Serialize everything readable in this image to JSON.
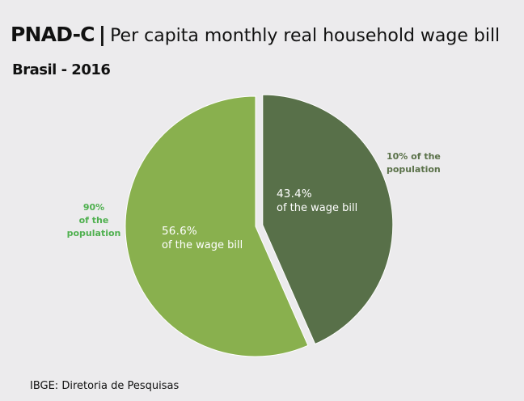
{
  "header": {
    "title_bold": "PNAD-C",
    "title_sep": "|",
    "title_rest": "Per capita monthly real household wage bill",
    "subtitle": "Brasil - 2016"
  },
  "chart_data": {
    "type": "pie",
    "title": "PNAD-C | Per capita monthly real household wage bill",
    "subtitle": "Brasil - 2016",
    "slices": [
      {
        "group": "10% of the population",
        "value": 43.4,
        "label_value": "43.4%",
        "label_text": "of the wage bill",
        "color": "#587049",
        "exploded": true
      },
      {
        "group": "90% of the population",
        "value": 56.6,
        "label_value": "56.6%",
        "label_text": "of the wage bill",
        "color": "#89b04e",
        "exploded": false
      }
    ],
    "ext_labels": {
      "right": [
        "10% of the",
        "population"
      ],
      "left": [
        "90%",
        "of the",
        "population"
      ]
    },
    "colors": {
      "right_label": "#5a7149",
      "left_label": "#4fb04f"
    }
  },
  "footer": {
    "source": "IBGE: Diretoria de Pesquisas"
  }
}
